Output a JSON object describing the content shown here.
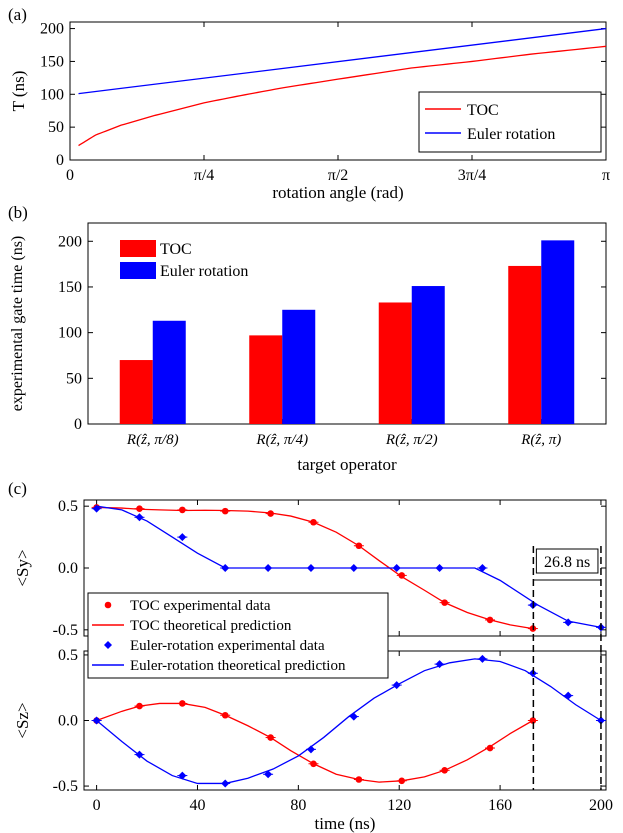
{
  "chart_data": [
    {
      "panel_label": "(a)",
      "type": "line",
      "xlabel": "rotation angle (rad)",
      "ylabel": "T (ns)",
      "xlim": [
        0,
        3.14159
      ],
      "ylim": [
        0,
        210
      ],
      "x_tick_values": [
        0,
        0.7854,
        1.5708,
        2.3562,
        3.14159
      ],
      "x_tick_labels": [
        "0",
        "π/4",
        "π/2",
        "3π/4",
        "π"
      ],
      "y_ticks": [
        0,
        50,
        100,
        150,
        200
      ],
      "legend_position": "bottom-right",
      "series": [
        {
          "name": "TOC",
          "color": "#ff0000",
          "curve": "sqrt",
          "x": [
            0.05,
            0.15,
            0.3,
            0.5,
            0.785,
            1.0,
            1.25,
            1.5708,
            2.0,
            2.3562,
            2.7,
            3.14159
          ],
          "y": [
            22,
            38,
            53,
            68,
            87,
            98,
            110,
            123,
            140,
            150,
            161,
            173
          ]
        },
        {
          "name": "Euler rotation",
          "color": "#0000ff",
          "curve": "linear",
          "x": [
            0.05,
            3.14159
          ],
          "y": [
            101,
            200
          ]
        }
      ]
    },
    {
      "panel_label": "(b)",
      "type": "bar",
      "xlabel": "target operator",
      "ylabel": "experimental gate time (ns)",
      "ylim": [
        0,
        220
      ],
      "y_ticks": [
        0,
        50,
        100,
        150,
        200
      ],
      "categories": [
        "R(ẑ, π/8)",
        "R(ẑ, π/4)",
        "R(ẑ, π/2)",
        "R(ẑ, π)"
      ],
      "legend_position": "top-left",
      "series": [
        {
          "name": "TOC",
          "color": "#ff0000",
          "values": [
            70,
            97,
            133,
            173
          ]
        },
        {
          "name": "Euler rotation",
          "color": "#0000ff",
          "values": [
            113,
            125,
            151,
            201
          ]
        }
      ]
    },
    {
      "panel_label": "(c)",
      "type": "line",
      "xlabel": "time (ns)",
      "x_ticks": [
        0,
        40,
        80,
        120,
        160,
        200
      ],
      "xlim": [
        -5,
        202
      ],
      "markers": [
        173.2,
        200
      ],
      "annotation": "26.8 ns",
      "subplots": [
        {
          "ylabel": "<Sy>",
          "ylim": [
            -0.55,
            0.55
          ],
          "y_ticks": [
            -0.5,
            0.0,
            0.5
          ],
          "y_tick_labels": [
            "-0.5",
            "0.0",
            "0.5"
          ],
          "series": [
            {
              "name": "TOC theoretical prediction",
              "color": "#ff0000",
              "x": [
                0,
                10,
                17,
                25,
                34,
                43,
                51,
                60,
                69,
                77,
                86,
                95,
                104,
                112,
                121,
                130,
                138,
                147,
                156,
                164,
                173
              ],
              "y": [
                0.49,
                0.485,
                0.475,
                0.47,
                0.465,
                0.467,
                0.465,
                0.46,
                0.445,
                0.42,
                0.37,
                0.29,
                0.18,
                0.06,
                -0.07,
                -0.18,
                -0.28,
                -0.36,
                -0.42,
                -0.46,
                -0.49
              ]
            },
            {
              "name": "TOC experimental data",
              "color": "#ff0000",
              "marker": "circle",
              "x": [
                0,
                17,
                34,
                51,
                69,
                86,
                104,
                121,
                138,
                156,
                173
              ],
              "y": [
                0.49,
                0.48,
                0.47,
                0.46,
                0.44,
                0.37,
                0.18,
                -0.06,
                -0.28,
                -0.42,
                -0.49
              ]
            },
            {
              "name": "Euler-rotation theoretical prediction",
              "color": "#0000ff",
              "x": [
                0,
                10,
                20,
                30,
                40,
                51,
                100,
                150,
                160,
                175,
                187,
                200
              ],
              "y": [
                0.5,
                0.47,
                0.38,
                0.25,
                0.12,
                0.0,
                0.0,
                0.0,
                -0.1,
                -0.3,
                -0.43,
                -0.48
              ]
            },
            {
              "name": "Euler-rotation experimental data",
              "color": "#0000ff",
              "marker": "diamond",
              "x": [
                0,
                17,
                34,
                51,
                68,
                85,
                102,
                119,
                136,
                153,
                173,
                187,
                200
              ],
              "y": [
                0.48,
                0.41,
                0.25,
                0.0,
                0.0,
                0.0,
                0.0,
                0.0,
                0.0,
                0.0,
                -0.3,
                -0.44,
                -0.48
              ]
            }
          ]
        },
        {
          "ylabel": "<Sz>",
          "ylim": [
            -0.53,
            0.53
          ],
          "y_ticks": [
            -0.5,
            0.0,
            0.5
          ],
          "y_tick_labels": [
            "-0.5",
            "0.0",
            "0.5"
          ],
          "series": [
            {
              "name": "TOC theoretical prediction",
              "color": "#ff0000",
              "x": [
                0,
                10,
                17,
                25,
                34,
                43,
                51,
                60,
                69,
                77,
                86,
                95,
                104,
                112,
                121,
                130,
                138,
                147,
                156,
                164,
                173
              ],
              "y": [
                0.0,
                0.07,
                0.11,
                0.13,
                0.13,
                0.1,
                0.04,
                -0.04,
                -0.13,
                -0.23,
                -0.33,
                -0.41,
                -0.45,
                -0.47,
                -0.46,
                -0.43,
                -0.38,
                -0.3,
                -0.2,
                -0.1,
                0.0
              ]
            },
            {
              "name": "TOC experimental data",
              "color": "#ff0000",
              "marker": "circle",
              "x": [
                0,
                17,
                34,
                51,
                69,
                86,
                104,
                121,
                138,
                156,
                173
              ],
              "y": [
                0.0,
                0.11,
                0.13,
                0.04,
                -0.13,
                -0.33,
                -0.45,
                -0.46,
                -0.38,
                -0.21,
                0.0
              ]
            },
            {
              "name": "Euler-rotation theoretical prediction",
              "color": "#0000ff",
              "x": [
                0,
                10,
                20,
                30,
                40,
                51,
                60,
                70,
                80,
                90,
                100,
                110,
                120,
                130,
                140,
                150,
                160,
                170,
                180,
                190,
                200
              ],
              "y": [
                0.0,
                -0.16,
                -0.31,
                -0.42,
                -0.48,
                -0.48,
                -0.44,
                -0.37,
                -0.27,
                -0.13,
                0.03,
                0.17,
                0.28,
                0.38,
                0.44,
                0.47,
                0.45,
                0.38,
                0.26,
                0.12,
                0.0
              ]
            },
            {
              "name": "Euler-rotation experimental data",
              "color": "#0000ff",
              "marker": "diamond",
              "x": [
                0,
                17,
                34,
                51,
                68,
                85,
                102,
                119,
                136,
                153,
                173,
                187,
                200
              ],
              "y": [
                0.0,
                -0.26,
                -0.42,
                -0.48,
                -0.41,
                -0.22,
                0.03,
                0.27,
                0.43,
                0.47,
                0.36,
                0.19,
                0.0
              ]
            }
          ]
        }
      ],
      "legend_position": "center-left",
      "legend_order": [
        "TOC experimental data",
        "TOC theoretical prediction",
        "Euler-rotation experimental data",
        "Euler-rotation theoretical prediction"
      ]
    }
  ]
}
